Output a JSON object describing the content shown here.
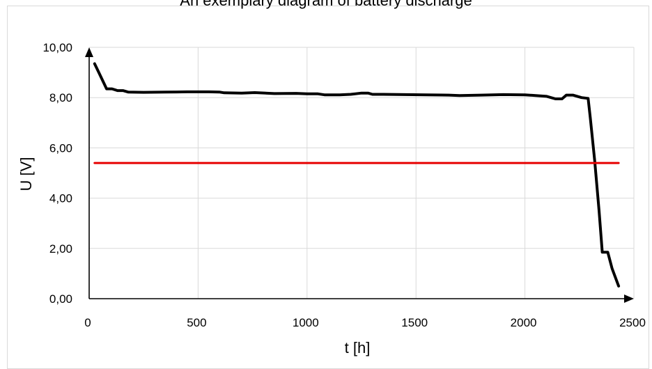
{
  "chart_data": {
    "type": "line",
    "title": "An exemplary diagram of battery discharge",
    "xlabel": "t [h]",
    "ylabel": "U [V]",
    "xlim": [
      0,
      2500
    ],
    "ylim": [
      0,
      10
    ],
    "x_ticks": [
      "0",
      "500",
      "1000",
      "1500",
      "2000",
      "2500"
    ],
    "y_ticks": [
      "0,00",
      "2,00",
      "4,00",
      "6,00",
      "8,00",
      "10,00"
    ],
    "grid": true,
    "legend": "none",
    "series": [
      {
        "color": "#000000",
        "points": [
          [
            25,
            9.35
          ],
          [
            50,
            8.9
          ],
          [
            80,
            8.35
          ],
          [
            105,
            8.35
          ],
          [
            130,
            8.28
          ],
          [
            155,
            8.28
          ],
          [
            180,
            8.22
          ],
          [
            250,
            8.21
          ],
          [
            350,
            8.22
          ],
          [
            450,
            8.23
          ],
          [
            550,
            8.23
          ],
          [
            600,
            8.22
          ],
          [
            620,
            8.19
          ],
          [
            700,
            8.18
          ],
          [
            760,
            8.2
          ],
          [
            850,
            8.16
          ],
          [
            950,
            8.17
          ],
          [
            1000,
            8.15
          ],
          [
            1050,
            8.15
          ],
          [
            1080,
            8.11
          ],
          [
            1150,
            8.11
          ],
          [
            1200,
            8.13
          ],
          [
            1250,
            8.18
          ],
          [
            1280,
            8.18
          ],
          [
            1300,
            8.13
          ],
          [
            1350,
            8.13
          ],
          [
            1450,
            8.12
          ],
          [
            1550,
            8.11
          ],
          [
            1650,
            8.1
          ],
          [
            1700,
            8.08
          ],
          [
            1800,
            8.1
          ],
          [
            1900,
            8.12
          ],
          [
            2000,
            8.11
          ],
          [
            2100,
            8.05
          ],
          [
            2140,
            7.95
          ],
          [
            2170,
            7.95
          ],
          [
            2190,
            8.1
          ],
          [
            2220,
            8.1
          ],
          [
            2260,
            8.0
          ],
          [
            2290,
            7.97
          ],
          [
            2300,
            7.2
          ],
          [
            2320,
            5.5
          ],
          [
            2340,
            3.5
          ],
          [
            2355,
            1.85
          ],
          [
            2380,
            1.85
          ],
          [
            2400,
            1.2
          ],
          [
            2430,
            0.5
          ]
        ]
      },
      {
        "color": "#e60000",
        "points": [
          [
            25,
            5.4
          ],
          [
            2430,
            5.4
          ]
        ]
      }
    ]
  }
}
